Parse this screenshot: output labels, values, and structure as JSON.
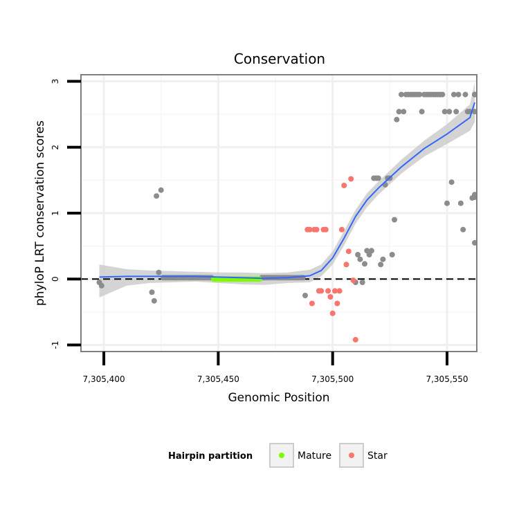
{
  "chart_data": {
    "type": "scatter",
    "title": "Conservation",
    "xlabel": "Genomic Position",
    "ylabel": "phyloP LRT conservation scores",
    "xlim": [
      7305390,
      7305563
    ],
    "ylim": [
      -1.1,
      3.1
    ],
    "x_ticks": [
      7305400,
      7305450,
      7305500,
      7305550
    ],
    "x_tick_labels": [
      "7,305,400",
      "7,305,450",
      "7,305,500",
      "7,305,550"
    ],
    "y_ticks": [
      -1,
      0,
      1,
      2,
      3
    ],
    "y_tick_labels": [
      "-1",
      "0",
      "1",
      "2",
      "3"
    ],
    "reference_line": {
      "y": 0,
      "style": "dashed"
    },
    "grid": true,
    "legend": {
      "title": "Hairpin partition",
      "position": "bottom",
      "entries": [
        {
          "label": "Mature",
          "color": "#7CFC00"
        },
        {
          "label": "Star",
          "color": "#F8766D"
        }
      ]
    },
    "colors": {
      "other": "#8c8c8c",
      "mature": "#7CFC00",
      "star": "#F8766D",
      "smooth": "#3366FF",
      "band": "#cccccc"
    },
    "series": [
      {
        "name": "Other",
        "points": [
          [
            7305398,
            -0.05
          ],
          [
            7305399,
            -0.1
          ],
          [
            7305421,
            -0.2
          ],
          [
            7305422,
            -0.33
          ],
          [
            7305423,
            1.26
          ],
          [
            7305424,
            0.1
          ],
          [
            7305425,
            1.35
          ],
          [
            7305426,
            0.02
          ],
          [
            7305427,
            0.02
          ],
          [
            7305428,
            0.02
          ],
          [
            7305429,
            0.02
          ],
          [
            7305430,
            0.02
          ],
          [
            7305431,
            0.02
          ],
          [
            7305432,
            0.02
          ],
          [
            7305433,
            0.02
          ],
          [
            7305434,
            0.02
          ],
          [
            7305435,
            0.02
          ],
          [
            7305436,
            0.02
          ],
          [
            7305437,
            0.02
          ],
          [
            7305438,
            0.02
          ],
          [
            7305439,
            0.02
          ],
          [
            7305440,
            0.02
          ],
          [
            7305441,
            0.02
          ],
          [
            7305442,
            0.02
          ],
          [
            7305443,
            0.02
          ],
          [
            7305444,
            0.02
          ],
          [
            7305445,
            0.02
          ],
          [
            7305446,
            0.02
          ],
          [
            7305447,
            0.02
          ],
          [
            7305469,
            0.02
          ],
          [
            7305470,
            0.02
          ],
          [
            7305471,
            0.02
          ],
          [
            7305472,
            0.02
          ],
          [
            7305473,
            0.02
          ],
          [
            7305474,
            0.02
          ],
          [
            7305475,
            0.02
          ],
          [
            7305476,
            0.02
          ],
          [
            7305477,
            0.02
          ],
          [
            7305478,
            0.02
          ],
          [
            7305479,
            0.02
          ],
          [
            7305480,
            0.02
          ],
          [
            7305481,
            0.02
          ],
          [
            7305482,
            0.02
          ],
          [
            7305483,
            0.02
          ],
          [
            7305484,
            0.02
          ],
          [
            7305485,
            0.02
          ],
          [
            7305486,
            0.02
          ],
          [
            7305487,
            0.02
          ],
          [
            7305488,
            -0.25
          ],
          [
            7305510,
            -0.05
          ],
          [
            7305511,
            0.37
          ],
          [
            7305512,
            0.3
          ],
          [
            7305513,
            -0.05
          ],
          [
            7305514,
            0.23
          ],
          [
            7305515,
            0.43
          ],
          [
            7305516,
            0.37
          ],
          [
            7305517,
            0.43
          ],
          [
            7305518,
            1.53
          ],
          [
            7305519,
            1.53
          ],
          [
            7305520,
            1.53
          ],
          [
            7305521,
            0.22
          ],
          [
            7305522,
            0.3
          ],
          [
            7305523,
            1.43
          ],
          [
            7305524,
            1.53
          ],
          [
            7305525,
            1.53
          ],
          [
            7305526,
            0.37
          ],
          [
            7305527,
            0.9
          ],
          [
            7305528,
            2.42
          ],
          [
            7305529,
            2.54
          ],
          [
            7305530,
            2.8
          ],
          [
            7305531,
            2.54
          ],
          [
            7305532,
            2.8
          ],
          [
            7305533,
            2.8
          ],
          [
            7305534,
            2.8
          ],
          [
            7305535,
            2.8
          ],
          [
            7305536,
            2.8
          ],
          [
            7305537,
            2.8
          ],
          [
            7305538,
            2.8
          ],
          [
            7305539,
            2.54
          ],
          [
            7305540,
            2.8
          ],
          [
            7305541,
            2.8
          ],
          [
            7305542,
            2.8
          ],
          [
            7305543,
            2.8
          ],
          [
            7305544,
            2.8
          ],
          [
            7305545,
            2.8
          ],
          [
            7305546,
            2.8
          ],
          [
            7305547,
            2.8
          ],
          [
            7305548,
            2.8
          ],
          [
            7305549,
            2.54
          ],
          [
            7305550,
            1.15
          ],
          [
            7305551,
            2.54
          ],
          [
            7305552,
            1.47
          ],
          [
            7305553,
            2.8
          ],
          [
            7305554,
            2.54
          ],
          [
            7305555,
            2.8
          ],
          [
            7305556,
            1.15
          ],
          [
            7305557,
            0.75
          ],
          [
            7305558,
            2.8
          ],
          [
            7305559,
            2.54
          ],
          [
            7305560,
            2.54
          ],
          [
            7305561,
            1.23
          ],
          [
            7305562,
            1.24
          ],
          [
            7305563,
            2.8
          ],
          [
            7305564,
            2.8
          ],
          [
            7305565,
            2.8
          ],
          [
            7305566,
            2.8
          ],
          [
            7305567,
            0.55
          ],
          [
            7305568,
            1.28
          ],
          [
            7305569,
            2.54
          ]
        ]
      },
      {
        "name": "Mature",
        "points": [
          [
            7305448,
            0.0
          ],
          [
            7305449,
            0.0
          ],
          [
            7305450,
            0.0
          ],
          [
            7305451,
            0.0
          ],
          [
            7305452,
            0.0
          ],
          [
            7305453,
            0.0
          ],
          [
            7305454,
            0.0
          ],
          [
            7305455,
            0.0
          ],
          [
            7305456,
            0.0
          ],
          [
            7305457,
            0.0
          ],
          [
            7305458,
            0.0
          ],
          [
            7305459,
            0.0
          ],
          [
            7305460,
            0.0
          ],
          [
            7305461,
            0.0
          ],
          [
            7305462,
            0.0
          ],
          [
            7305463,
            0.0
          ],
          [
            7305464,
            0.0
          ],
          [
            7305465,
            0.0
          ],
          [
            7305466,
            0.0
          ],
          [
            7305467,
            0.0
          ],
          [
            7305468,
            0.0
          ]
        ]
      },
      {
        "name": "Star",
        "points": [
          [
            7305489,
            0.75
          ],
          [
            7305490,
            0.75
          ],
          [
            7305491,
            -0.37
          ],
          [
            7305492,
            0.75
          ],
          [
            7305493,
            0.75
          ],
          [
            7305494,
            -0.18
          ],
          [
            7305495,
            -0.18
          ],
          [
            7305496,
            0.75
          ],
          [
            7305497,
            0.75
          ],
          [
            7305498,
            -0.18
          ],
          [
            7305499,
            -0.27
          ],
          [
            7305500,
            -0.52
          ],
          [
            7305501,
            -0.18
          ],
          [
            7305502,
            -0.37
          ],
          [
            7305503,
            -0.18
          ],
          [
            7305504,
            0.75
          ],
          [
            7305505,
            1.42
          ],
          [
            7305506,
            0.22
          ],
          [
            7305507,
            0.42
          ],
          [
            7305508,
            1.52
          ],
          [
            7305509,
            -0.02
          ],
          [
            7305510,
            -0.92
          ]
        ]
      }
    ],
    "smooth": {
      "x": [
        7305398,
        7305410,
        7305420,
        7305430,
        7305440,
        7305450,
        7305460,
        7305470,
        7305480,
        7305490,
        7305495,
        7305500,
        7305505,
        7305510,
        7305515,
        7305520,
        7305530,
        7305540,
        7305550,
        7305560,
        7305569
      ],
      "y": [
        0.03,
        0.04,
        0.04,
        0.04,
        0.04,
        0.03,
        0.02,
        0.01,
        0.02,
        0.05,
        0.13,
        0.32,
        0.62,
        0.95,
        1.2,
        1.38,
        1.7,
        1.98,
        2.2,
        2.45,
        2.68
      ],
      "upper": [
        0.22,
        0.15,
        0.13,
        0.12,
        0.11,
        0.1,
        0.1,
        0.09,
        0.1,
        0.14,
        0.22,
        0.42,
        0.73,
        1.05,
        1.3,
        1.48,
        1.81,
        2.1,
        2.35,
        2.65,
        2.98
      ],
      "lower": [
        -0.28,
        -0.1,
        -0.06,
        -0.05,
        -0.04,
        -0.06,
        -0.08,
        -0.09,
        -0.06,
        -0.05,
        0.04,
        0.22,
        0.51,
        0.84,
        1.09,
        1.28,
        1.6,
        1.86,
        2.05,
        2.25,
        2.38
      ]
    }
  }
}
